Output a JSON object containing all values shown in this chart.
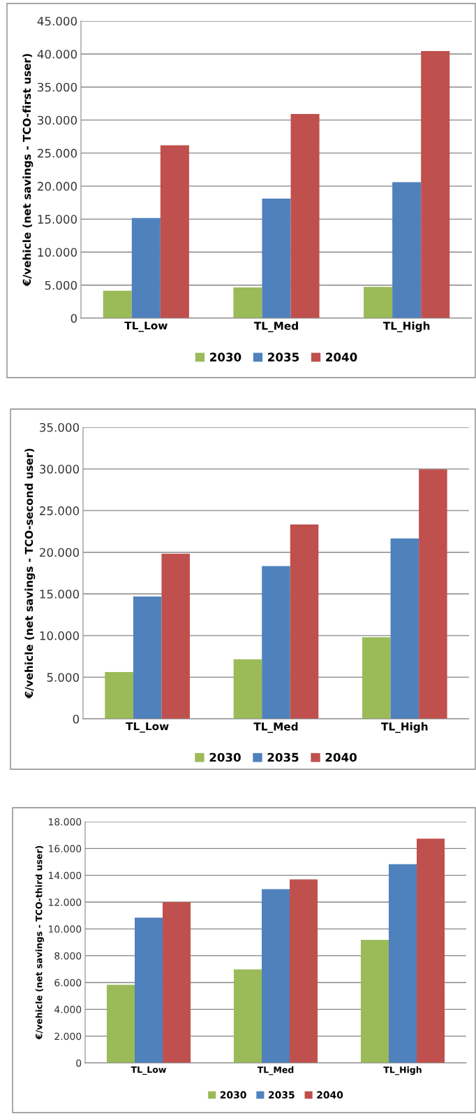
{
  "chart_data": [
    {
      "type": "bar",
      "ylabel": "€/vehicle (net savings - TCO-first user)",
      "categories": [
        "TL_Low",
        "TL_Med",
        "TL_High"
      ],
      "series": [
        {
          "name": "2030",
          "color": "#9bbb59",
          "values": [
            4150,
            4650,
            4750
          ]
        },
        {
          "name": "2035",
          "color": "#4f81bd",
          "values": [
            15160,
            18110,
            20600
          ]
        },
        {
          "name": "2040",
          "color": "#c0504d",
          "values": [
            26180,
            30920,
            40460
          ]
        }
      ],
      "ylim": [
        0,
        45000
      ],
      "yticks": [
        {
          "value": 0,
          "label": "0"
        },
        {
          "value": 5000,
          "label": "5.000"
        },
        {
          "value": 10000,
          "label": "10.000"
        },
        {
          "value": 15000,
          "label": "15.000"
        },
        {
          "value": 20000,
          "label": "20.000"
        },
        {
          "value": 25000,
          "label": "25.000"
        },
        {
          "value": 30000,
          "label": "30.000"
        },
        {
          "value": 35000,
          "label": "35.000"
        },
        {
          "value": 40000,
          "label": "40.000"
        },
        {
          "value": 45000,
          "label": "45.000"
        }
      ],
      "grid": "y",
      "legend": "bottom"
    },
    {
      "type": "bar",
      "ylabel": "€/vehicle (net savings - TCO-second user)",
      "categories": [
        "TL_Low",
        "TL_Med",
        "TL_High"
      ],
      "series": [
        {
          "name": "2030",
          "color": "#9bbb59",
          "values": [
            5620,
            7160,
            9790
          ]
        },
        {
          "name": "2035",
          "color": "#4f81bd",
          "values": [
            14680,
            18330,
            21660
          ]
        },
        {
          "name": "2040",
          "color": "#c0504d",
          "values": [
            19830,
            23340,
            29950
          ]
        }
      ],
      "ylim": [
        0,
        35000
      ],
      "yticks": [
        {
          "value": 0,
          "label": "0"
        },
        {
          "value": 5000,
          "label": "5.000"
        },
        {
          "value": 10000,
          "label": "10.000"
        },
        {
          "value": 15000,
          "label": "15.000"
        },
        {
          "value": 20000,
          "label": "20.000"
        },
        {
          "value": 25000,
          "label": "25.000"
        },
        {
          "value": 30000,
          "label": "30.000"
        },
        {
          "value": 35000,
          "label": "35.000"
        }
      ],
      "grid": "y",
      "legend": "bottom"
    },
    {
      "type": "bar",
      "ylabel": "€/vehicle (net savings - TCO-third user)",
      "categories": [
        "TL_Low",
        "TL_Med",
        "TL_High"
      ],
      "series": [
        {
          "name": "2030",
          "color": "#9bbb59",
          "values": [
            5830,
            6980,
            9180
          ]
        },
        {
          "name": "2035",
          "color": "#4f81bd",
          "values": [
            10840,
            12970,
            14830
          ]
        },
        {
          "name": "2040",
          "color": "#c0504d",
          "values": [
            12000,
            13700,
            16730
          ]
        }
      ],
      "ylim": [
        0,
        18000
      ],
      "yticks": [
        {
          "value": 0,
          "label": "0"
        },
        {
          "value": 2000,
          "label": "2.000"
        },
        {
          "value": 4000,
          "label": "4.000"
        },
        {
          "value": 6000,
          "label": "6.000"
        },
        {
          "value": 8000,
          "label": "8.000"
        },
        {
          "value": 10000,
          "label": "10.000"
        },
        {
          "value": 12000,
          "label": "12.000"
        },
        {
          "value": 14000,
          "label": "14.000"
        },
        {
          "value": 16000,
          "label": "16.000"
        },
        {
          "value": 18000,
          "label": "18.000"
        }
      ],
      "grid": "y",
      "legend": "bottom"
    }
  ]
}
